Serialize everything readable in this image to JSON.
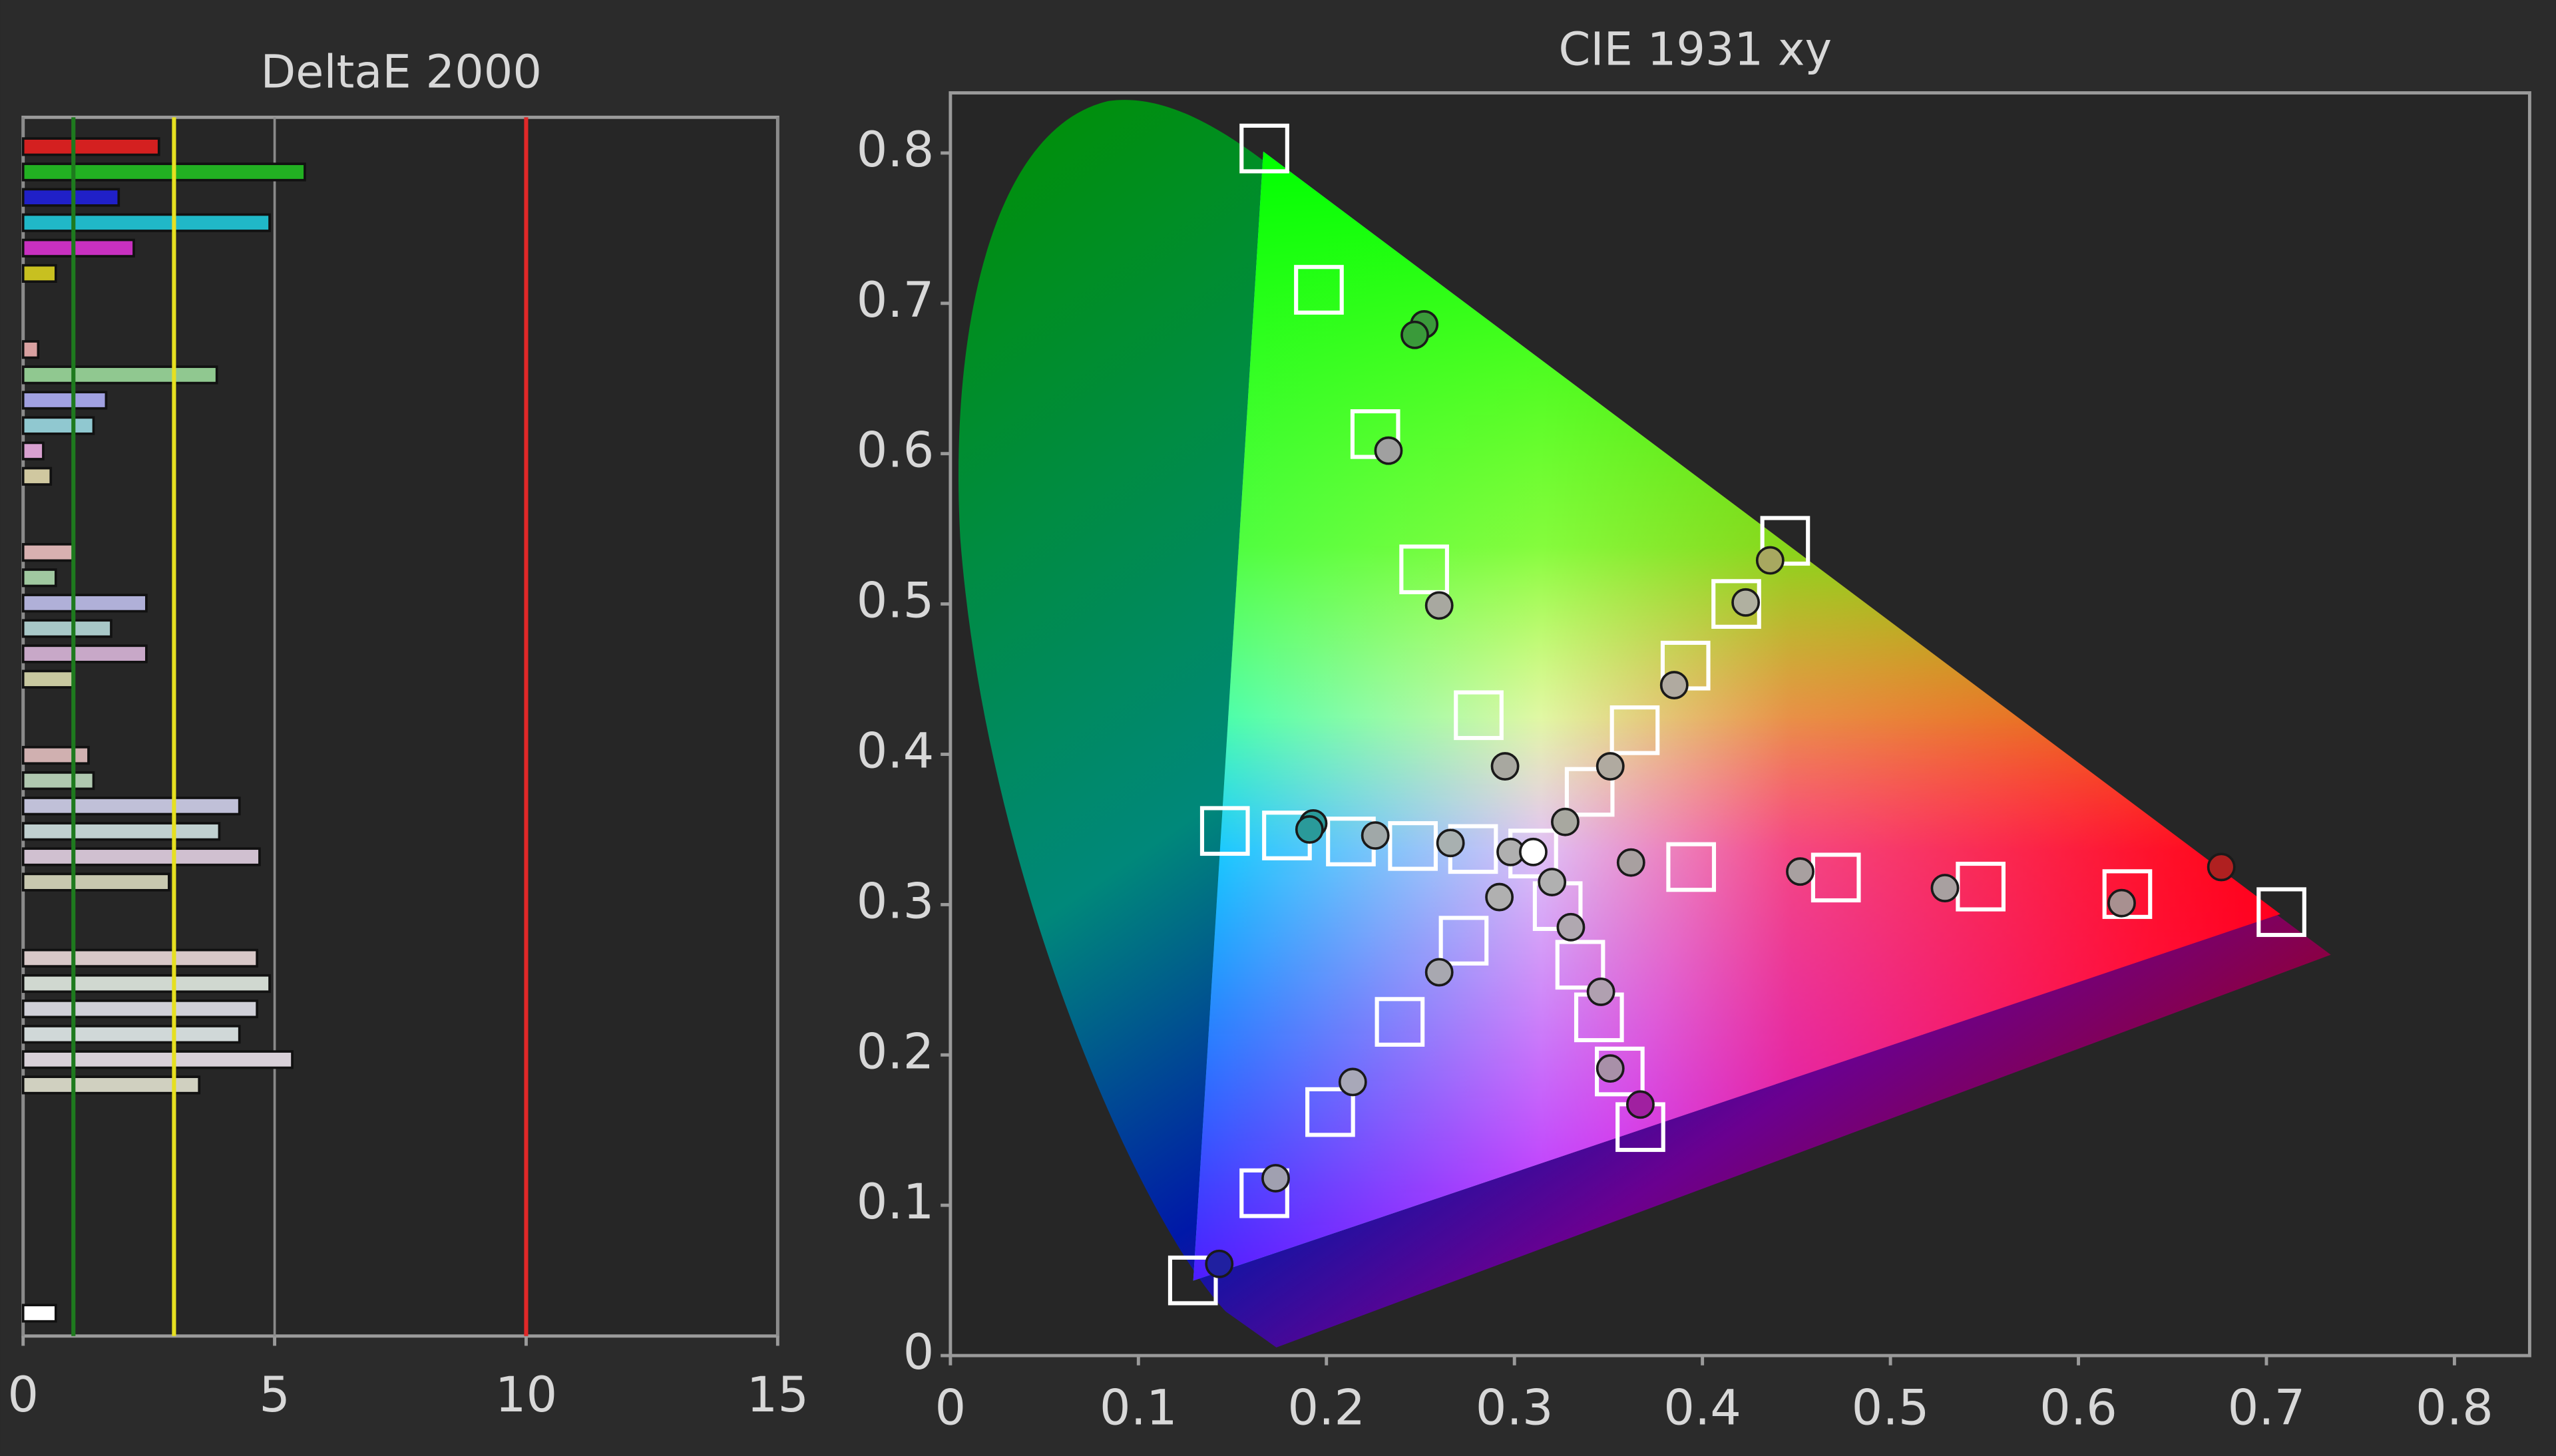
{
  "chart_data": [
    {
      "type": "bar",
      "orientation": "horizontal",
      "title": "DeltaE 2000",
      "categories": [
        null,
        null,
        null,
        null,
        null,
        null,
        null,
        null,
        null,
        null,
        null,
        null,
        null,
        null,
        null,
        null,
        null,
        null,
        null,
        null,
        null,
        null,
        null,
        null,
        null,
        null,
        null,
        null,
        null,
        null,
        null,
        null,
        null,
        null,
        null,
        null,
        null,
        null,
        null,
        null,
        null,
        null,
        null,
        null,
        null,
        null,
        null
      ],
      "values": [
        2.7,
        5.6,
        1.9,
        4.9,
        2.2,
        0.65,
        null,
        null,
        0.3,
        3.85,
        1.65,
        1.4,
        0.4,
        0.55,
        null,
        null,
        1.0,
        0.65,
        2.45,
        1.75,
        2.45,
        1.0,
        null,
        null,
        1.3,
        1.4,
        4.3,
        3.9,
        4.7,
        2.9,
        null,
        null,
        4.65,
        4.9,
        4.65,
        4.3,
        5.35,
        3.5,
        null,
        null,
        null,
        null,
        null,
        null,
        null,
        null,
        0.65
      ],
      "colors": [
        "#d42020",
        "#22b022",
        "#2020c8",
        "#20b8c8",
        "#c830c0",
        "#c8c020",
        null,
        null,
        "#d8a0a0",
        "#90c890",
        "#a0a0e0",
        "#90c8d0",
        "#d8a0d0",
        "#d0c8a0",
        null,
        null,
        "#d8b0b0",
        "#a0c8a0",
        "#b0b0d8",
        "#a8c8c8",
        "#c8a8c8",
        "#c8c8a0",
        null,
        null,
        "#d0b0b0",
        "#b0c8b0",
        "#c0c0d8",
        "#c0d0d0",
        "#d0c0d0",
        "#c8c8b0",
        null,
        null,
        "#d8c8c8",
        "#d0d8d0",
        "#d0d0d8",
        "#d0d8d8",
        "#d8d0d8",
        "#d0d0c0",
        null,
        null,
        null,
        null,
        null,
        null,
        null,
        null,
        "#ffffff"
      ],
      "xlim": [
        0,
        15
      ],
      "xticks": [
        0,
        5,
        10,
        15
      ],
      "grid": true,
      "reference_lines": [
        {
          "value": 1,
          "color": "#1e7a1e"
        },
        {
          "value": 3,
          "color": "#e6e020"
        },
        {
          "value": 10,
          "color": "#e02828"
        }
      ]
    },
    {
      "type": "scatter",
      "title": "CIE 1931 xy",
      "xlim": [
        0,
        0.84
      ],
      "ylim": [
        0,
        0.84
      ],
      "xticks": [
        0,
        0.1,
        0.2,
        0.3,
        0.4,
        0.5,
        0.6,
        0.7,
        0.8
      ],
      "yticks": [
        0,
        0.1,
        0.2,
        0.3,
        0.4,
        0.5,
        0.6,
        0.7,
        0.8
      ],
      "series": [
        {
          "marker": "square",
          "color": "#ffffff",
          "x": [
            0.167,
            0.196,
            0.226,
            0.252,
            0.281,
            0.444,
            0.418,
            0.391,
            0.364,
            0.34,
            0.708,
            0.626,
            0.548,
            0.471,
            0.394,
            0.146,
            0.179,
            0.213,
            0.246,
            0.278,
            0.129,
            0.167,
            0.202,
            0.239,
            0.273,
            0.367,
            0.356,
            0.345,
            0.335,
            0.323,
            0.31
          ],
          "y": [
            0.803,
            0.709,
            0.613,
            0.523,
            0.426,
            0.542,
            0.5,
            0.459,
            0.416,
            0.375,
            0.295,
            0.307,
            0.312,
            0.318,
            0.325,
            0.349,
            0.346,
            0.342,
            0.339,
            0.337,
            0.05,
            0.108,
            0.162,
            0.222,
            0.276,
            0.152,
            0.189,
            0.225,
            0.26,
            0.299,
            0.334
          ]
        },
        {
          "marker": "circle",
          "colors": [
            "#3a9a3a",
            "#3a9a3a",
            "#a0a0a0",
            "#a8a8a0",
            "#a8a8a0",
            "#a8a8a0",
            "#a8a860",
            "#b0b0a0",
            "#b0aaa0",
            "#b0aaa0",
            "#b02020",
            "#a89090",
            "#a8a0a0",
            "#a8a0a0",
            "#a8a0a0",
            "#2a9a9a",
            "#2a9a9a",
            "#a0a8a8",
            "#a8b0b0",
            "#b0b0b0",
            "#2020a0",
            "#a0a0b0",
            "#a8a8b8",
            "#a8a8b0",
            "#b0b0b0",
            "#a020a0",
            "#a890a8",
            "#b0a0b0",
            "#b0a8b0",
            "#b0b0b0",
            "#ffffff"
          ],
          "x": [
            0.252,
            0.247,
            0.233,
            0.26,
            0.295,
            0.327,
            0.436,
            0.423,
            0.385,
            0.351,
            0.676,
            0.623,
            0.529,
            0.452,
            0.362,
            0.193,
            0.191,
            0.226,
            0.266,
            0.298,
            0.143,
            0.173,
            0.214,
            0.26,
            0.292,
            0.367,
            0.351,
            0.346,
            0.33,
            0.32,
            0.31
          ],
          "y": [
            0.686,
            0.679,
            0.602,
            0.499,
            0.392,
            0.355,
            0.529,
            0.501,
            0.446,
            0.392,
            0.325,
            0.301,
            0.311,
            0.322,
            0.328,
            0.354,
            0.35,
            0.346,
            0.341,
            0.335,
            0.061,
            0.118,
            0.182,
            0.255,
            0.305,
            0.167,
            0.191,
            0.242,
            0.285,
            0.315,
            0.335
          ]
        }
      ]
    }
  ]
}
